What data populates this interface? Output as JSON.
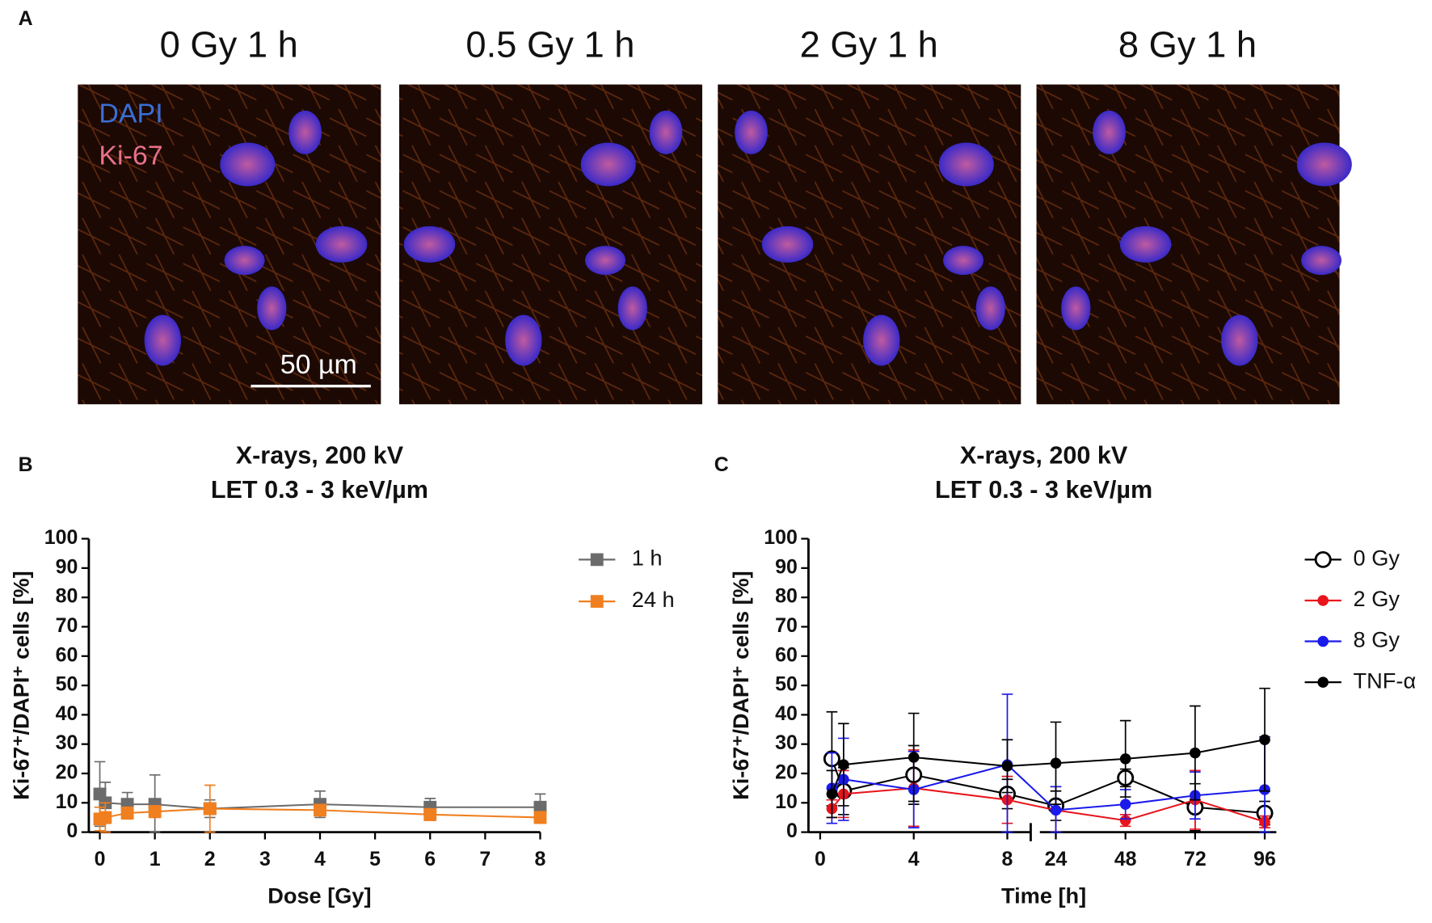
{
  "panel_a": {
    "label": "A",
    "images": [
      {
        "title": "0 Gy 1 h"
      },
      {
        "title": "0.5 Gy 1 h"
      },
      {
        "title": "2 Gy 1 h"
      },
      {
        "title": "8 Gy 1 h"
      }
    ],
    "stain_labels": [
      "DAPI",
      "Ki-67"
    ],
    "scale_bar": "50 µm"
  },
  "chart_data": [
    {
      "type": "line",
      "panel_label": "B",
      "title": [
        "X-rays, 200 kV",
        "LET 0.3 - 3 keV/µm"
      ],
      "x_label": "Dose [Gy]",
      "y_label": "Ki-67⁺/DAPI⁺ cells [%]",
      "x": [
        0,
        0.1,
        0.5,
        1,
        2,
        4,
        6,
        8
      ],
      "xlim": [
        -0.2,
        8
      ],
      "xticks": [
        0,
        1,
        2,
        3,
        4,
        5,
        6,
        7,
        8
      ],
      "ylim": [
        0,
        100
      ],
      "yticks": [
        0,
        10,
        20,
        30,
        40,
        50,
        60,
        70,
        80,
        90,
        100
      ],
      "marker": "square",
      "legend": "right",
      "series": [
        {
          "name": "1 h",
          "color": "#6b6b6b",
          "values": [
            13,
            10,
            9.5,
            9.5,
            8,
            9.5,
            8.5,
            8.5
          ],
          "errors": [
            11,
            7,
            4,
            10,
            3,
            4.5,
            3,
            4.5
          ]
        },
        {
          "name": "24 h",
          "color": "#f07f1f",
          "values": [
            4.5,
            5,
            6.5,
            7,
            8,
            7.5,
            6,
            5
          ],
          "errors": [
            4,
            5,
            2,
            2,
            8,
            1.5,
            2,
            2
          ]
        }
      ]
    },
    {
      "type": "line",
      "panel_label": "C",
      "title": [
        "X-rays, 200 kV",
        "LET 0.3 - 3 keV/µm"
      ],
      "x_label": "Time [h]",
      "y_label": "Ki-67⁺/DAPI⁺ cells [%]",
      "x": [
        0.5,
        1,
        4,
        8,
        24,
        48,
        72,
        96
      ],
      "x_segments": [
        {
          "xlim": [
            -0.5,
            9
          ],
          "xticks": [
            0,
            4,
            8
          ]
        },
        {
          "xlim": [
            18.5,
            100
          ],
          "xticks": [
            24,
            48,
            72,
            96
          ]
        }
      ],
      "ylim": [
        0,
        100
      ],
      "yticks": [
        0,
        10,
        20,
        30,
        40,
        50,
        60,
        70,
        80,
        90,
        100
      ],
      "marker": "circle",
      "legend": "right",
      "series": [
        {
          "name": "0 Gy",
          "color": "#000000",
          "open": true,
          "values": [
            25,
            14,
            19.5,
            13,
            9,
            18.5,
            8.5,
            6.5
          ],
          "errors": [
            16,
            8,
            10,
            5,
            5,
            3,
            8,
            4
          ]
        },
        {
          "name": "2 Gy",
          "color": "#e8141c",
          "values": [
            8,
            13,
            15,
            11,
            7.5,
            4,
            11,
            3.5
          ],
          "errors": [
            3,
            8,
            13,
            8,
            8,
            2,
            10,
            2
          ]
        },
        {
          "name": "8 Gy",
          "color": "#1a1aeb",
          "values": [
            15,
            18,
            14.5,
            23,
            7.5,
            9.5,
            12.5,
            14.5
          ],
          "errors": [
            12,
            14,
            13,
            24,
            8,
            5,
            8,
            18
          ]
        },
        {
          "name": "TNF-α",
          "color": "#000000",
          "values": [
            13,
            23,
            25.5,
            22.5,
            23.5,
            25,
            27,
            31.5
          ],
          "errors": [
            8,
            14,
            15,
            9,
            14,
            13,
            16,
            17.5
          ]
        }
      ]
    }
  ]
}
